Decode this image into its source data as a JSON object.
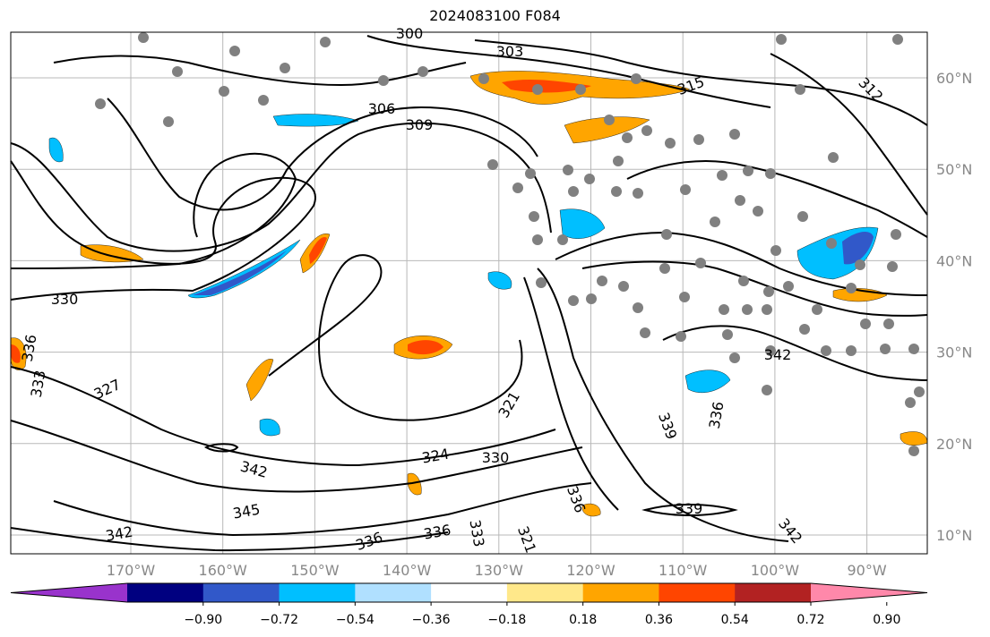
{
  "title": "2024083100 F084",
  "map": {
    "lon_range": [
      -180,
      -83
    ],
    "lat_range": [
      8,
      65
    ],
    "lon_ticks": [
      "170°W",
      "160°W",
      "150°W",
      "140°W",
      "130°W",
      "120°W",
      "110°W",
      "100°W",
      "90°W"
    ],
    "lat_ticks": [
      "60°N",
      "50°N",
      "40°N",
      "30°N",
      "20°N",
      "10°N"
    ],
    "grid": true,
    "contour_labels": [
      "300",
      "303",
      "306",
      "309",
      "312",
      "315",
      "330",
      "336",
      "333",
      "327",
      "321",
      "324",
      "330",
      "336",
      "333",
      "339",
      "342",
      "336",
      "342",
      "336",
      "321",
      "342",
      "345",
      "339",
      "336",
      "342"
    ],
    "station_marker_color": "#808080"
  },
  "colorbar": {
    "colors": [
      "#9933cc",
      "#000080",
      "#3158c9",
      "#00bfff",
      "#b0e0ff",
      "#ffffff",
      "#ffe88a",
      "#ffa500",
      "#ff4500",
      "#b22222",
      "#ff88aa"
    ],
    "tick_labels": [
      "−0.90",
      "−0.72",
      "−0.54",
      "−0.36",
      "−0.18",
      "0.18",
      "0.36",
      "0.54",
      "0.72",
      "0.90"
    ]
  }
}
